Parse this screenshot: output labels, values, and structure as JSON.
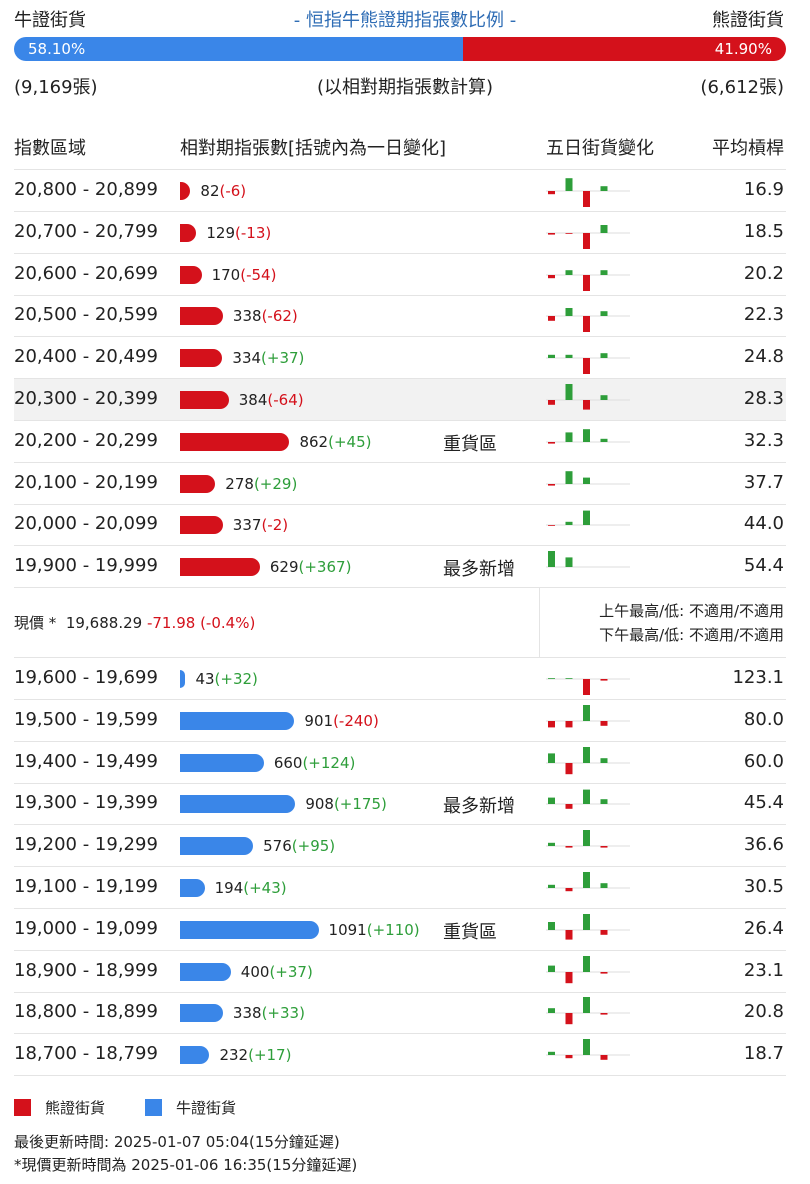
{
  "header": {
    "bull_label": "牛證街貨",
    "title": "- 恒指牛熊證期指張數比例 -",
    "bear_label": "熊證街貨",
    "bull_ratio": 58.1,
    "bull_ratio_label": "58.10%",
    "bear_ratio": 41.9,
    "bear_ratio_label": "41.90%",
    "bull_total": "(9,169張)",
    "note": "(以相對期指張數計算)",
    "bear_total": "(6,612張)"
  },
  "columns": [
    "指數區域",
    "相對期指張數[括號內為一日變化]",
    "五日街貨變化",
    "平均槓桿"
  ],
  "bear_rows": [
    {
      "range": "20,800 - 20,899",
      "count": 82,
      "change": -6,
      "change_label": "(-6)",
      "five_day": [
        -2,
        8,
        -10,
        3
      ],
      "leverage": "16.9"
    },
    {
      "range": "20,700 - 20,799",
      "count": 129,
      "change": -13,
      "change_label": "(-13)",
      "five_day": [
        -1,
        -0.5,
        -10,
        5
      ],
      "leverage": "18.5"
    },
    {
      "range": "20,600 - 20,699",
      "count": 170,
      "change": -54,
      "change_label": "(-54)",
      "five_day": [
        -2,
        3,
        -10,
        3
      ],
      "leverage": "20.2"
    },
    {
      "range": "20,500 - 20,599",
      "count": 338,
      "change": -62,
      "change_label": "(-62)",
      "five_day": [
        -3,
        5,
        -10,
        3
      ],
      "leverage": "22.3"
    },
    {
      "range": "20,400 - 20,499",
      "count": 334,
      "change": 37,
      "change_label": "(+37)",
      "five_day": [
        2,
        2,
        -10,
        3
      ],
      "leverage": "24.8"
    },
    {
      "range": "20,300 - 20,399",
      "count": 384,
      "change": -64,
      "change_label": "(-64)",
      "five_day": [
        -3,
        10,
        -6,
        3
      ],
      "leverage": "28.3",
      "highlight": true
    },
    {
      "range": "20,200 - 20,299",
      "count": 862,
      "change": 45,
      "change_label": "(+45)",
      "tag": "重貨區",
      "five_day": [
        -1,
        6,
        8,
        2
      ],
      "leverage": "32.3"
    },
    {
      "range": "20,100 - 20,199",
      "count": 278,
      "change": 29,
      "change_label": "(+29)",
      "five_day": [
        -1,
        8,
        4,
        0
      ],
      "leverage": "37.7"
    },
    {
      "range": "20,000 - 20,099",
      "count": 337,
      "change": -2,
      "change_label": "(-2)",
      "five_day": [
        -0.5,
        2,
        9,
        0
      ],
      "leverage": "44.0"
    },
    {
      "range": "19,900 - 19,999",
      "count": 629,
      "change": 367,
      "change_label": "(+367)",
      "tag": "最多新增",
      "five_day": [
        10,
        6,
        0,
        0
      ],
      "leverage": "54.4"
    }
  ],
  "price": {
    "label": "現價 *",
    "value": "19,688.29",
    "change": "-71.98 (-0.4%)",
    "am": "上午最高/低: 不適用/不適用",
    "pm": "下午最高/低: 不適用/不適用"
  },
  "bull_rows": [
    {
      "range": "19,600 - 19,699",
      "count": 43,
      "change": 32,
      "change_label": "(+32)",
      "five_day": [
        0.5,
        0.5,
        -10,
        -1
      ],
      "leverage": "123.1"
    },
    {
      "range": "19,500 - 19,599",
      "count": 901,
      "change": -240,
      "change_label": "(-240)",
      "five_day": [
        -4,
        -4,
        10,
        -3
      ],
      "leverage": "80.0"
    },
    {
      "range": "19,400 - 19,499",
      "count": 660,
      "change": 124,
      "change_label": "(+124)",
      "five_day": [
        6,
        -7,
        10,
        3
      ],
      "leverage": "60.0"
    },
    {
      "range": "19,300 - 19,399",
      "count": 908,
      "change": 175,
      "change_label": "(+175)",
      "tag": "最多新增",
      "five_day": [
        4,
        -3,
        9,
        3
      ],
      "leverage": "45.4"
    },
    {
      "range": "19,200 - 19,299",
      "count": 576,
      "change": 95,
      "change_label": "(+95)",
      "five_day": [
        2,
        -1,
        10,
        -1
      ],
      "leverage": "36.6"
    },
    {
      "range": "19,100 - 19,199",
      "count": 194,
      "change": 43,
      "change_label": "(+43)",
      "five_day": [
        2,
        -2,
        10,
        3
      ],
      "leverage": "30.5"
    },
    {
      "range": "19,000 - 19,099",
      "count": 1091,
      "change": 110,
      "change_label": "(+110)",
      "tag": "重貨區",
      "five_day": [
        5,
        -6,
        10,
        -3
      ],
      "leverage": "26.4"
    },
    {
      "range": "18,900 - 18,999",
      "count": 400,
      "change": 37,
      "change_label": "(+37)",
      "five_day": [
        4,
        -7,
        10,
        -1
      ],
      "leverage": "23.1"
    },
    {
      "range": "18,800 - 18,899",
      "count": 338,
      "change": 33,
      "change_label": "(+33)",
      "five_day": [
        3,
        -7,
        10,
        -1
      ],
      "leverage": "20.8"
    },
    {
      "range": "18,700 - 18,799",
      "count": 232,
      "change": 17,
      "change_label": "(+17)",
      "five_day": [
        2,
        -2,
        10,
        -3
      ],
      "leverage": "18.7"
    }
  ],
  "legend": [
    {
      "name": "熊證街貨",
      "color": "#d4111b"
    },
    {
      "name": "牛證街貨",
      "color": "#3a86e8"
    }
  ],
  "footer": [
    "最後更新時間: 2025-01-07 05:04(15分鐘延遲)",
    "*現價更新時間為 2025-01-06 16:35(15分鐘延遲)"
  ]
}
